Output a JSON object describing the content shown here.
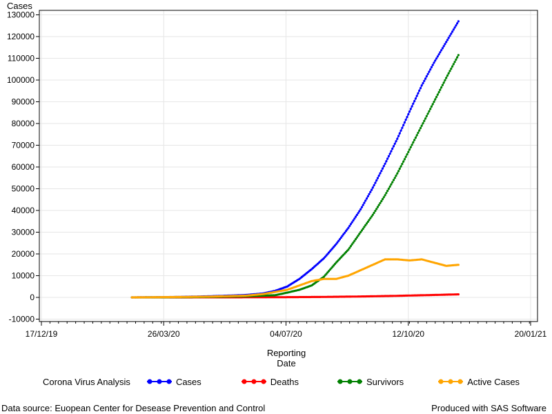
{
  "chart_data": {
    "type": "line",
    "ylabel": "Cases",
    "xlabel_lines": [
      "Reporting",
      "Date"
    ],
    "ylim": [
      -10000,
      135000
    ],
    "y_ticks": [
      -10000,
      0,
      10000,
      20000,
      30000,
      40000,
      50000,
      60000,
      70000,
      80000,
      90000,
      100000,
      110000,
      120000,
      130000
    ],
    "x_ticks": [
      {
        "date": "2019-12-17",
        "label": "17/12/19"
      },
      {
        "date": "2020-03-26",
        "label": "26/03/20"
      },
      {
        "date": "2020-07-04",
        "label": "04/07/20"
      },
      {
        "date": "2020-10-12",
        "label": "12/10/20"
      },
      {
        "date": "2021-01-20",
        "label": "20/01/21"
      }
    ],
    "xlim": [
      "2019-12-17",
      "2021-01-20"
    ],
    "grid": true,
    "legend": {
      "title": "Corona Virus Analysis",
      "placement": "bottom"
    },
    "series": [
      {
        "name": "Cases",
        "color": "#0000ff",
        "points": [
          [
            "2020-02-29",
            0
          ],
          [
            "2020-03-15",
            50
          ],
          [
            "2020-04-01",
            150
          ],
          [
            "2020-04-15",
            300
          ],
          [
            "2020-05-01",
            500
          ],
          [
            "2020-05-15",
            750
          ],
          [
            "2020-06-01",
            1100
          ],
          [
            "2020-06-15",
            1800
          ],
          [
            "2020-06-25",
            3000
          ],
          [
            "2020-07-05",
            5000
          ],
          [
            "2020-07-15",
            8500
          ],
          [
            "2020-07-25",
            13000
          ],
          [
            "2020-08-04",
            18000
          ],
          [
            "2020-08-14",
            24500
          ],
          [
            "2020-08-24",
            32000
          ],
          [
            "2020-09-03",
            40500
          ],
          [
            "2020-09-13",
            50500
          ],
          [
            "2020-09-23",
            61500
          ],
          [
            "2020-10-03",
            73000
          ],
          [
            "2020-10-13",
            85500
          ],
          [
            "2020-10-23",
            97500
          ],
          [
            "2020-11-02",
            108000
          ],
          [
            "2020-11-12",
            117500
          ],
          [
            "2020-11-22",
            127000
          ]
        ]
      },
      {
        "name": "Deaths",
        "color": "#ff0000",
        "points": [
          [
            "2020-02-29",
            0
          ],
          [
            "2020-05-01",
            20
          ],
          [
            "2020-06-01",
            50
          ],
          [
            "2020-07-01",
            100
          ],
          [
            "2020-08-01",
            200
          ],
          [
            "2020-09-01",
            400
          ],
          [
            "2020-10-01",
            700
          ],
          [
            "2020-11-01",
            1100
          ],
          [
            "2020-11-22",
            1400
          ]
        ]
      },
      {
        "name": "Survivors",
        "color": "#008000",
        "points": [
          [
            "2020-02-29",
            0
          ],
          [
            "2020-04-01",
            50
          ],
          [
            "2020-05-01",
            200
          ],
          [
            "2020-06-01",
            500
          ],
          [
            "2020-06-25",
            1000
          ],
          [
            "2020-07-05",
            2200
          ],
          [
            "2020-07-15",
            3500
          ],
          [
            "2020-07-25",
            5500
          ],
          [
            "2020-08-04",
            9500
          ],
          [
            "2020-08-14",
            16000
          ],
          [
            "2020-08-24",
            22000
          ],
          [
            "2020-09-03",
            30000
          ],
          [
            "2020-09-13",
            38000
          ],
          [
            "2020-09-23",
            47000
          ],
          [
            "2020-10-03",
            57000
          ],
          [
            "2020-10-13",
            68000
          ],
          [
            "2020-10-23",
            79000
          ],
          [
            "2020-11-02",
            90000
          ],
          [
            "2020-11-12",
            101000
          ],
          [
            "2020-11-22",
            111500
          ]
        ]
      },
      {
        "name": "Active Cases",
        "color": "#ffa500",
        "points": [
          [
            "2020-02-29",
            0
          ],
          [
            "2020-04-01",
            150
          ],
          [
            "2020-05-01",
            350
          ],
          [
            "2020-06-01",
            800
          ],
          [
            "2020-06-15",
            1500
          ],
          [
            "2020-06-25",
            2500
          ],
          [
            "2020-07-05",
            3500
          ],
          [
            "2020-07-15",
            5500
          ],
          [
            "2020-07-25",
            7500
          ],
          [
            "2020-08-04",
            8500
          ],
          [
            "2020-08-14",
            8500
          ],
          [
            "2020-08-24",
            10000
          ],
          [
            "2020-09-03",
            12500
          ],
          [
            "2020-09-13",
            15000
          ],
          [
            "2020-09-23",
            17500
          ],
          [
            "2020-10-03",
            17500
          ],
          [
            "2020-10-13",
            17000
          ],
          [
            "2020-10-23",
            17500
          ],
          [
            "2020-11-02",
            16000
          ],
          [
            "2020-11-12",
            14500
          ],
          [
            "2020-11-22",
            15000
          ]
        ]
      }
    ]
  },
  "footer": {
    "source": "Data source: Euopean Center for Desease Prevention and Control",
    "credit": "Produced with SAS Software"
  }
}
